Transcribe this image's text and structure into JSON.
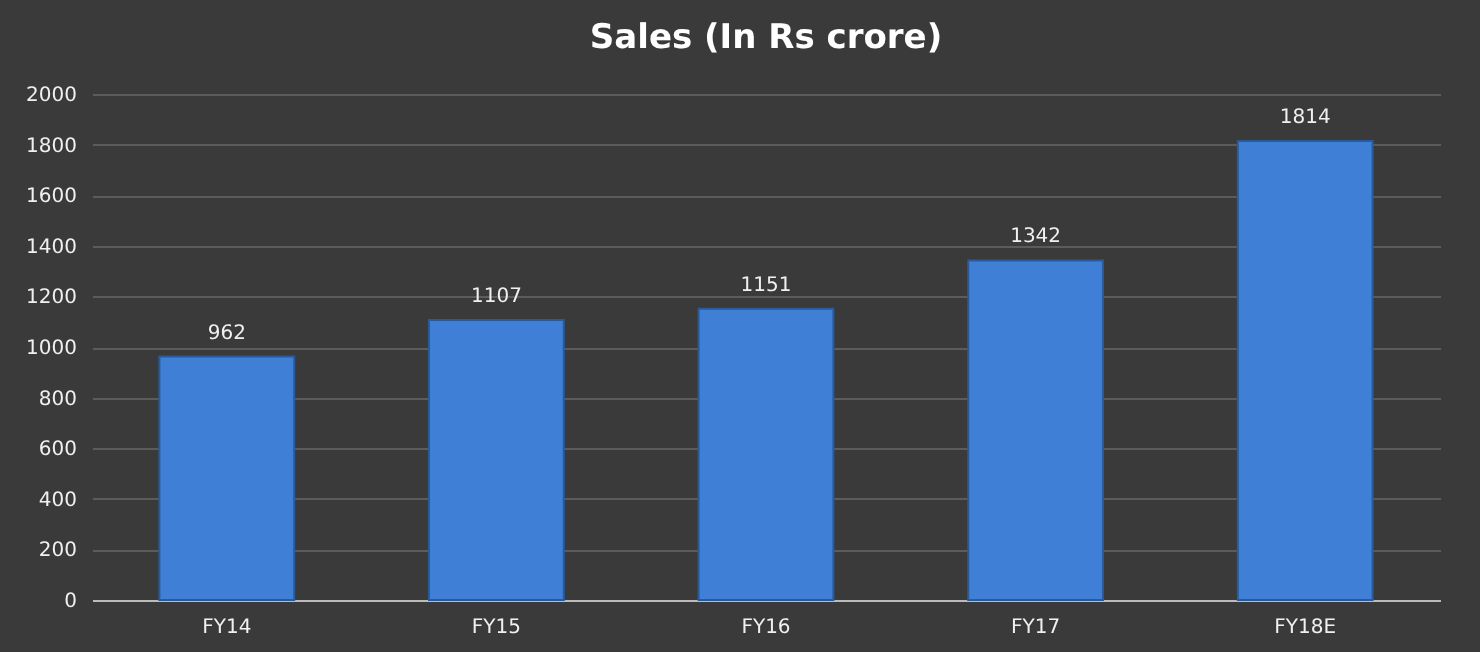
{
  "chart_data": {
    "type": "bar",
    "title": "Sales (In Rs crore)",
    "categories": [
      "FY14",
      "FY15",
      "FY16",
      "FY17",
      "FY18E"
    ],
    "values": [
      962,
      1107,
      1151,
      1342,
      1814
    ],
    "color": "#3f7fd6",
    "ylim": [
      0,
      2000
    ],
    "yticks": [
      0,
      200,
      400,
      600,
      800,
      1000,
      1200,
      1400,
      1600,
      1800,
      2000
    ],
    "grid": "y",
    "data_labels": true
  }
}
